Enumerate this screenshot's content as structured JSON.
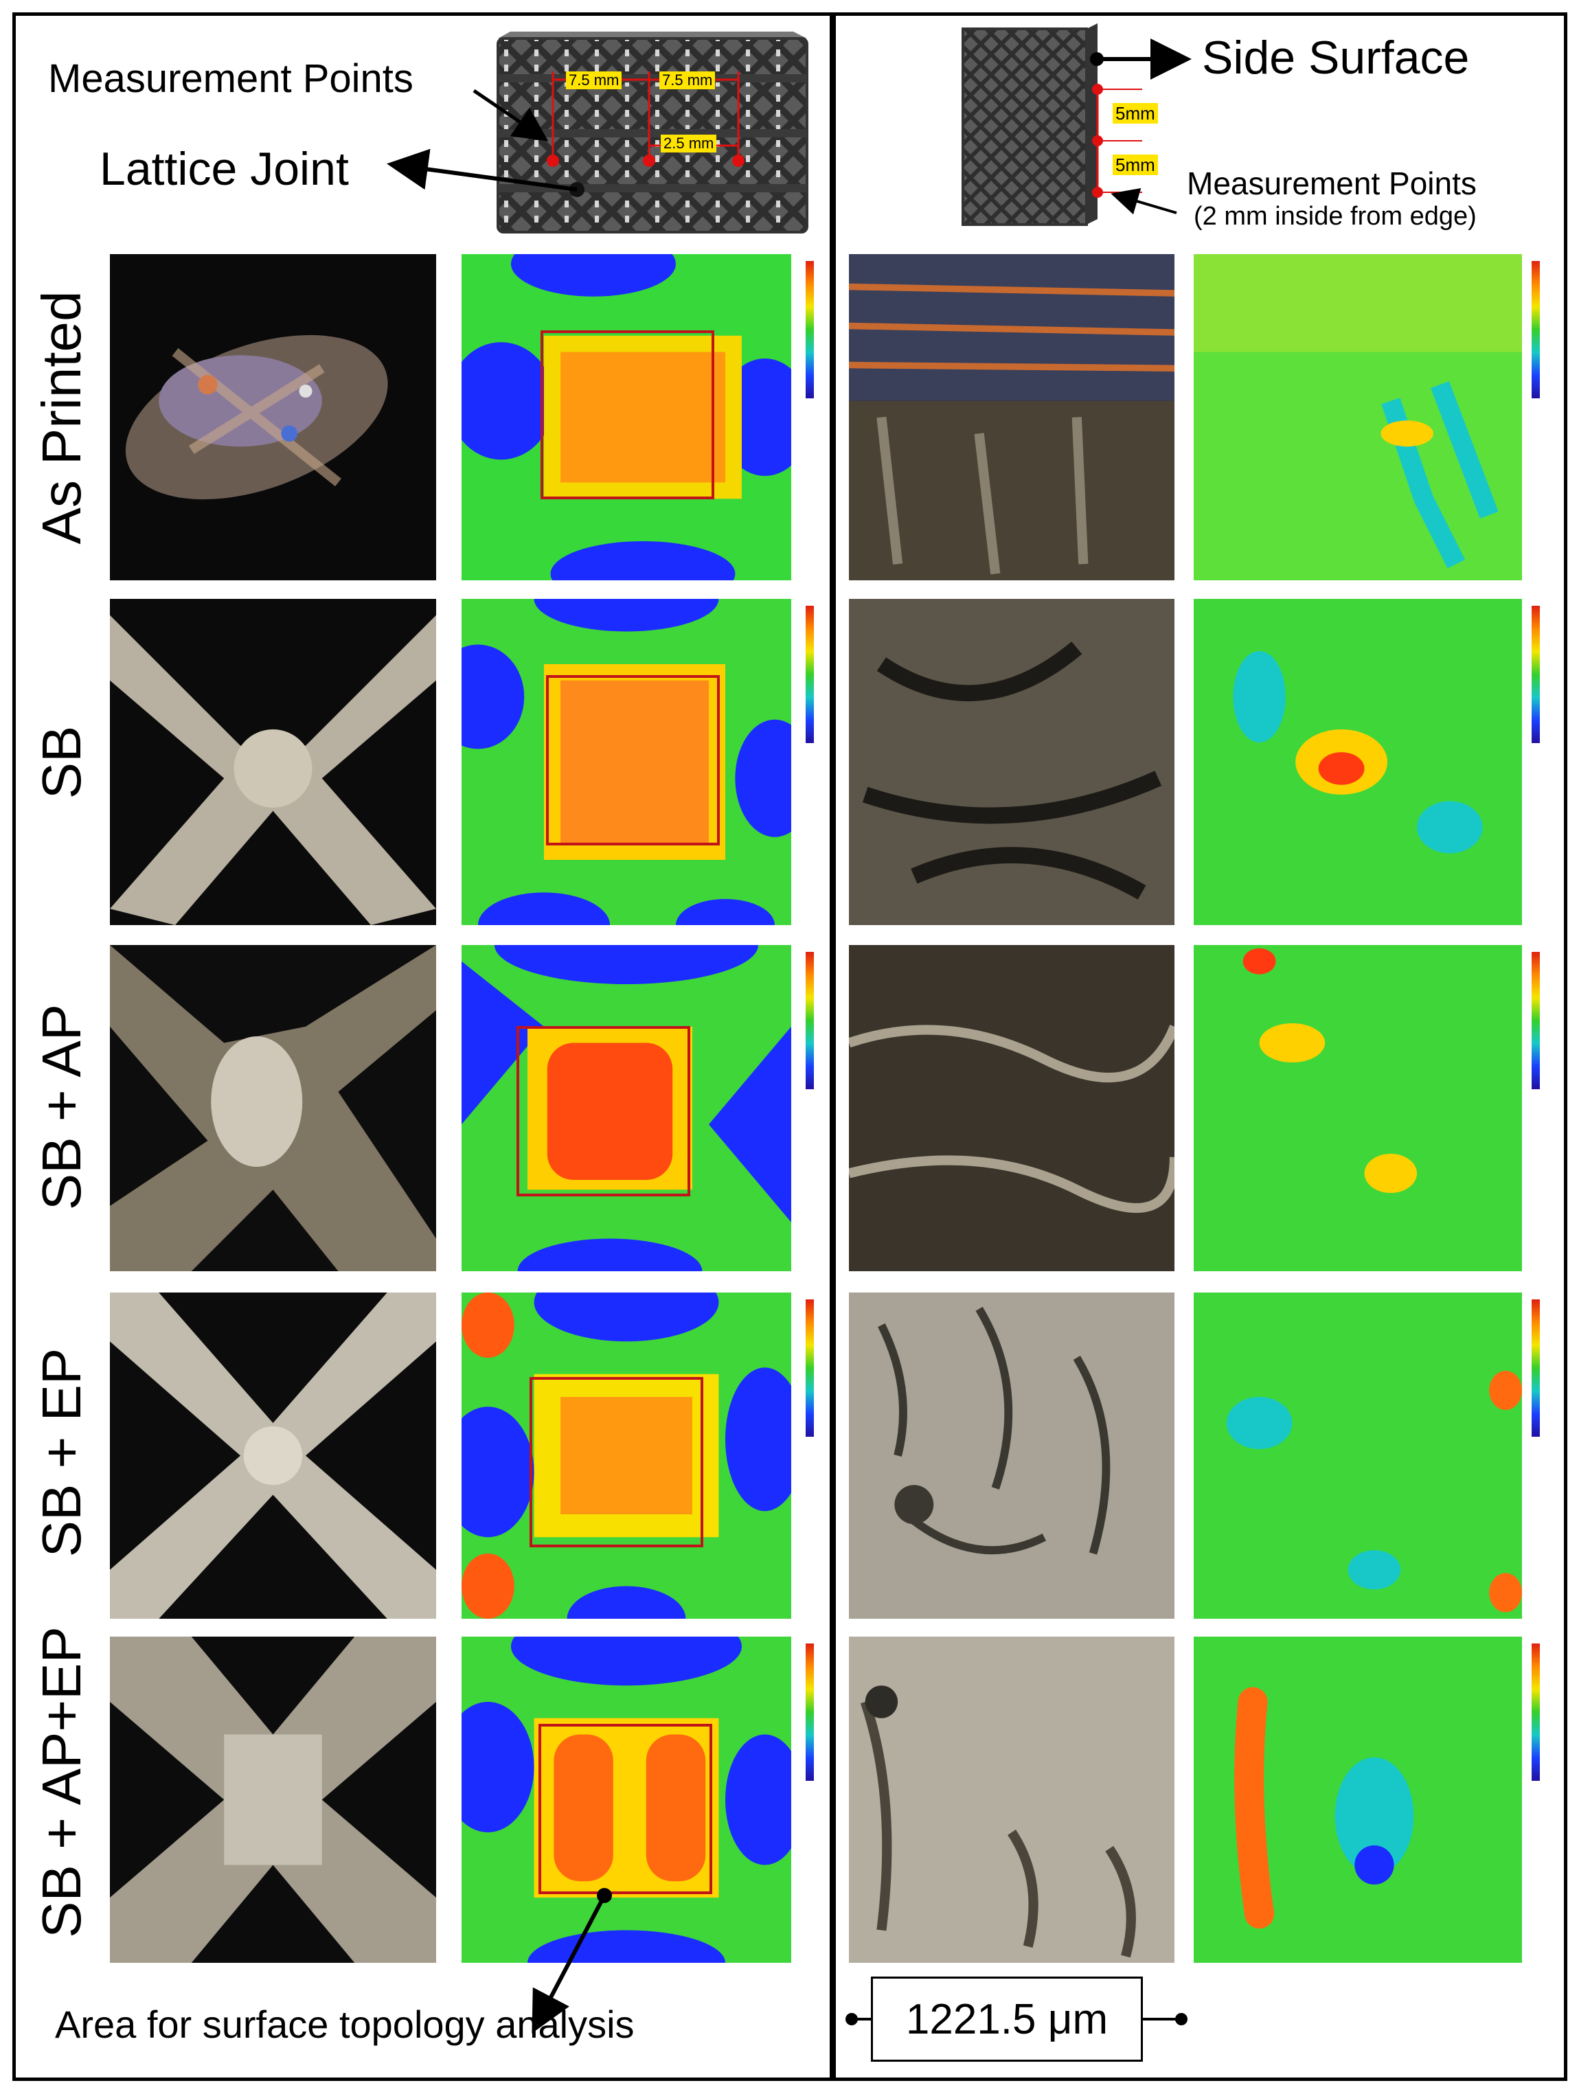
{
  "left_panel": {
    "measurement_points": "Measurement  Points",
    "lattice_joint": "Lattice Joint",
    "dim_1": "7.5 mm",
    "dim_2": "7.5 mm",
    "dim_3": "2.5 mm",
    "area_caption": "Area for surface topology analysis"
  },
  "right_panel": {
    "side_surface": "Side Surface",
    "dim_1": "5mm",
    "dim_2": "5mm",
    "measurement_points": "Measurement  Points",
    "measurement_note": "(2 mm inside from edge)",
    "scale_bar": "1221.5 μm"
  },
  "rows": [
    {
      "label": "As Printed"
    },
    {
      "label": "SB"
    },
    {
      "label": "SB + AP"
    },
    {
      "label": "SB + EP"
    },
    {
      "label": "SB + AP+EP"
    }
  ],
  "colors": {
    "frame": "#000000",
    "analysis_box": "#c0141a",
    "dimension_tag": "#ffe400",
    "marker": "#e01010",
    "heat_low": "#1a2cff",
    "heat_mid": "#2ed63a",
    "heat_high": "#ff6a00"
  }
}
